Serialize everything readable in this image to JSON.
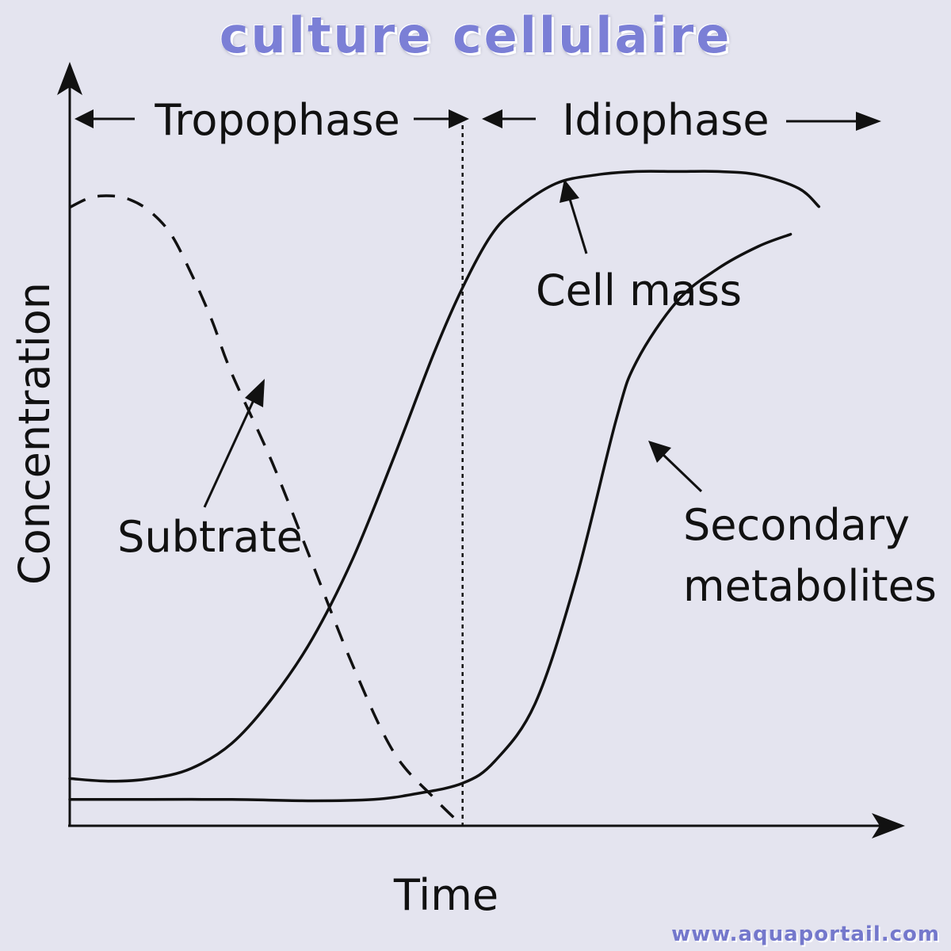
{
  "title": "culture cellulaire",
  "watermark": "www.aquaportail.com",
  "chart_data": {
    "type": "line",
    "xlabel": "Time",
    "ylabel": "Concentration",
    "xlim": [
      0,
      100
    ],
    "ylim": [
      0,
      100
    ],
    "grid": false,
    "phases": [
      {
        "label": "Tropophase",
        "x_start": 0,
        "x_end": 48.5
      },
      {
        "label": "Idiophase",
        "x_start": 48.5,
        "x_end": 100
      }
    ],
    "phase_boundary_x": 48.5,
    "series": [
      {
        "name": "Cell mass",
        "style": "solid",
        "x": [
          0,
          5,
          10,
          15,
          20,
          25,
          30,
          35,
          40,
          45,
          48.5,
          52,
          55,
          60,
          65,
          70,
          75,
          80,
          85,
          90,
          92.5
        ],
        "y": [
          7.0,
          6.6,
          7.0,
          8.5,
          12.2,
          18.9,
          27.8,
          39.7,
          54.5,
          70.1,
          79.7,
          87.4,
          91.2,
          95.1,
          96.4,
          96.9,
          96.9,
          96.9,
          96.4,
          94.4,
          91.7
        ]
      },
      {
        "name": "Secondary metabolites",
        "style": "solid",
        "x": [
          0,
          10,
          20,
          30,
          37.5,
          42.5,
          48.5,
          52.5,
          57.5,
          62.5,
          67.5,
          70,
          75,
          80,
          85,
          89
        ],
        "y": [
          3.9,
          3.9,
          3.9,
          3.7,
          3.9,
          4.7,
          6.3,
          9.6,
          18.2,
          36.5,
          60.3,
          68.8,
          77.7,
          82.5,
          85.8,
          87.6
        ]
      },
      {
        "name": "Subtrate",
        "style": "dashed",
        "x": [
          0,
          2.5,
          5,
          7.5,
          10,
          12.5,
          15,
          17.5,
          20,
          25,
          30,
          35,
          40,
          45,
          48.5
        ],
        "y": [
          91.6,
          93.0,
          93.3,
          92.7,
          90.9,
          87.6,
          81.8,
          75.0,
          67.0,
          53.8,
          38.7,
          23.6,
          10.9,
          4.1,
          0.0
        ]
      }
    ],
    "annotations": [
      {
        "text": "Cell mass",
        "target": "Cell mass"
      },
      {
        "text": "Secondary",
        "target": "Secondary metabolites"
      },
      {
        "text": "metabolites",
        "target": "Secondary metabolites"
      },
      {
        "text": "Subtrate",
        "target": "Subtrate"
      }
    ]
  }
}
